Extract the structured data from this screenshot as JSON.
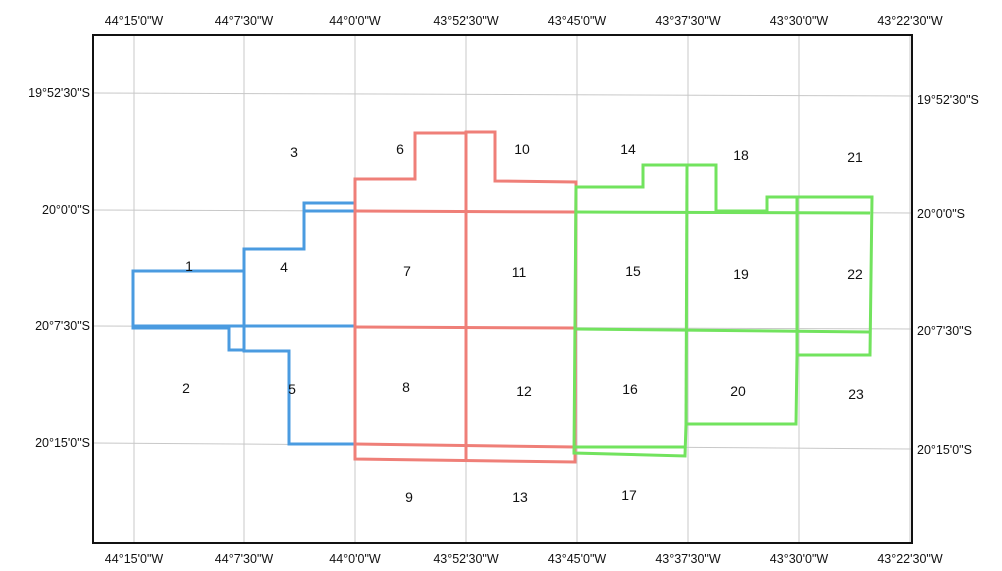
{
  "map": {
    "top_ticks": [
      "44°15'0\"W",
      "44°7'30\"W",
      "44°0'0\"W",
      "43°52'30\"W",
      "43°45'0\"W",
      "43°37'30\"W",
      "43°30'0\"W",
      "43°22'30\"W"
    ],
    "bottom_ticks": [
      "44°15'0\"W",
      "44°7'30\"W",
      "44°0'0\"W",
      "43°52'30\"W",
      "43°45'0\"W",
      "43°37'30\"W",
      "43°30'0\"W",
      "43°22'30\"W"
    ],
    "left_ticks": [
      "19°52'30\"S",
      "20°0'0\"S",
      "20°7'30\"S",
      "20°15'0\"S"
    ],
    "right_ticks": [
      "19°52'30\"S",
      "20°0'0\"S",
      "20°7'30\"S",
      "20°15'0\"S"
    ],
    "zones": [
      "1",
      "2",
      "3",
      "4",
      "5",
      "6",
      "7",
      "8",
      "9",
      "10",
      "11",
      "12",
      "13",
      "14",
      "15",
      "16",
      "17",
      "18",
      "19",
      "20",
      "21",
      "22",
      "23"
    ],
    "colors": {
      "frame": "#111111",
      "grid": "#c8c8c8",
      "blue_group": "#4a9be0",
      "red_group": "#ef7f78",
      "green_group": "#72e35e"
    }
  }
}
